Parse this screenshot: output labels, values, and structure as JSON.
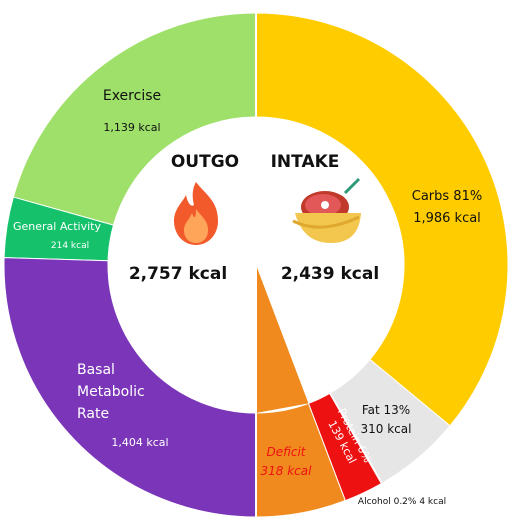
{
  "chart_data": {
    "type": "pie",
    "outgo": {
      "title": "OUTGO",
      "total": "2,757 kcal",
      "icon": "fire-icon",
      "slices": [
        {
          "name": "Exercise",
          "value": 1139,
          "value_label": "1,139 kcal",
          "color": "#9ee06a"
        },
        {
          "name": "General Activity",
          "value": 214,
          "value_label": "214 kcal",
          "color": "#15c26b"
        },
        {
          "name": "Basal Metabolic Rate",
          "value": 1404,
          "value_label": "1,404 kcal",
          "color": "#7b35b8"
        }
      ]
    },
    "intake": {
      "title": "INTAKE",
      "total": "2,439 kcal",
      "icon": "food-bowl-icon",
      "slices": [
        {
          "name": "Carbs",
          "percent": "81%",
          "value": 1986,
          "value_label": "1,986 kcal",
          "color": "#ffcc00"
        },
        {
          "name": "Fat",
          "percent": "13%",
          "value": 310,
          "value_label": "310 kcal",
          "color": "#e6e6e6"
        },
        {
          "name": "Protein",
          "percent": "6%",
          "value": 139,
          "value_label": "139 kcal",
          "color": "#ee1111"
        },
        {
          "name": "Alcohol",
          "percent": "0.2%",
          "value": 4,
          "value_label": "4 kcal",
          "color": "#ff66aa"
        },
        {
          "name": "Deficit",
          "value": 318,
          "value_label": "318 kcal",
          "color": "#f08a1e"
        }
      ]
    }
  },
  "labels": {
    "exercise_name": "Exercise",
    "exercise_value": "1,139 kcal",
    "general_name": "General Activity",
    "general_value": "214 kcal",
    "bmr_line1": "Basal",
    "bmr_line2": "Metabolic",
    "bmr_line3": "Rate",
    "bmr_value": "1,404 kcal",
    "carbs_line1": "Carbs 81%",
    "carbs_line2": "1,986 kcal",
    "fat_line1": "Fat 13%",
    "fat_line2": "310 kcal",
    "protein_line1": "Protein 6%",
    "protein_line2": "139 kcal",
    "deficit_name": "Deficit",
    "deficit_value": "318 kcal",
    "alcohol": "Alcohol 0.2% 4 kcal"
  }
}
